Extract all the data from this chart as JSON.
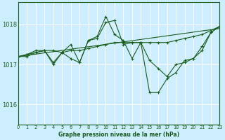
{
  "title": "Graphe pression niveau de la mer (hPa)",
  "bg_color": "#cceeff",
  "grid_color": "#ffffff",
  "line_color": "#1a5c1a",
  "xlim": [
    0,
    23
  ],
  "ylim": [
    1015.5,
    1018.55
  ],
  "yticks": [
    1016,
    1017,
    1018
  ],
  "xticks": [
    0,
    1,
    2,
    3,
    4,
    5,
    6,
    7,
    8,
    9,
    10,
    11,
    12,
    13,
    14,
    15,
    16,
    17,
    18,
    19,
    20,
    21,
    22,
    23
  ],
  "series1": {
    "x": [
      0,
      1,
      2,
      3,
      4,
      5,
      6,
      7,
      8,
      9,
      10,
      11,
      12,
      13,
      14,
      15,
      16,
      17,
      18,
      19,
      20,
      21,
      22,
      23
    ],
    "y": [
      1017.2,
      1017.25,
      1017.3,
      1017.35,
      1017.0,
      1017.3,
      1017.5,
      1017.05,
      1017.6,
      1017.7,
      1018.2,
      1017.75,
      1017.6,
      1017.15,
      1017.55,
      1016.3,
      1016.3,
      1016.65,
      1016.8,
      1017.1,
      1017.15,
      1017.45,
      1017.8,
      1017.95
    ]
  },
  "series2": {
    "x": [
      0,
      1,
      2,
      3,
      4,
      5,
      6,
      7,
      8,
      9,
      10,
      11,
      12,
      13,
      14,
      15,
      16,
      17,
      18,
      19,
      20,
      21,
      22,
      23
    ],
    "y": [
      1017.2,
      1017.25,
      1017.35,
      1017.35,
      1017.05,
      1017.3,
      1017.15,
      1017.05,
      1017.6,
      1017.65,
      1018.05,
      1018.1,
      1017.5,
      1017.55,
      1017.55,
      1017.1,
      1016.9,
      1016.7,
      1017.0,
      1017.05,
      1017.15,
      1017.35,
      1017.8,
      1017.95
    ]
  },
  "series3": {
    "x": [
      0,
      1,
      2,
      3,
      4,
      5,
      6,
      7,
      8,
      9,
      10,
      11,
      12,
      13,
      14,
      15,
      16,
      17,
      18,
      19,
      20,
      21,
      22,
      23
    ],
    "y": [
      1017.2,
      1017.2,
      1017.3,
      1017.35,
      1017.35,
      1017.3,
      1017.35,
      1017.35,
      1017.4,
      1017.45,
      1017.5,
      1017.55,
      1017.55,
      1017.55,
      1017.55,
      1017.55,
      1017.55,
      1017.55,
      1017.6,
      1017.65,
      1017.7,
      1017.75,
      1017.85,
      1017.95
    ]
  },
  "straight_line": {
    "x": [
      0,
      23
    ],
    "y": [
      1017.2,
      1017.9
    ]
  }
}
